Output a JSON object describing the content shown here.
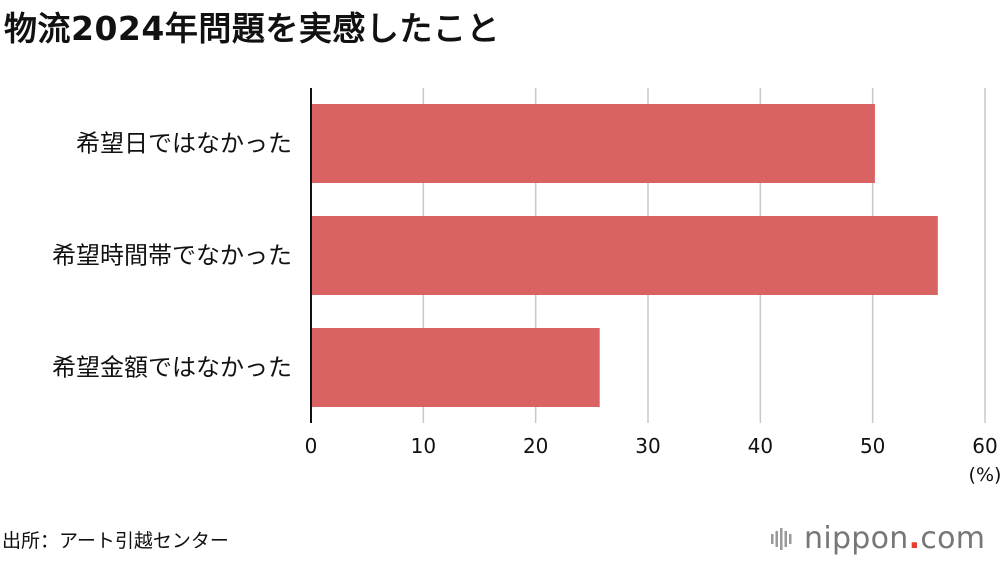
{
  "chart_data": {
    "type": "bar",
    "orientation": "horizontal",
    "title": "物流2024年問題を実感したこと",
    "categories": [
      "希望日ではなかった",
      "希望時間帯でなかった",
      "希望金額ではなかった"
    ],
    "values": [
      50.2,
      55.8,
      25.7
    ],
    "xlim": [
      0,
      60
    ],
    "xticks": [
      "0",
      "10",
      "20",
      "30",
      "40",
      "50",
      "60"
    ],
    "unit": "(%)",
    "grid": true,
    "bar_color": "#d96262",
    "grid_color": "#c8c8c8"
  },
  "source": "出所：アート引越センター",
  "logo": {
    "name": "nippon",
    "dot": ".",
    "suffix": "com",
    "icon": "nippon-logo-mark",
    "accent": "#e6402d"
  }
}
